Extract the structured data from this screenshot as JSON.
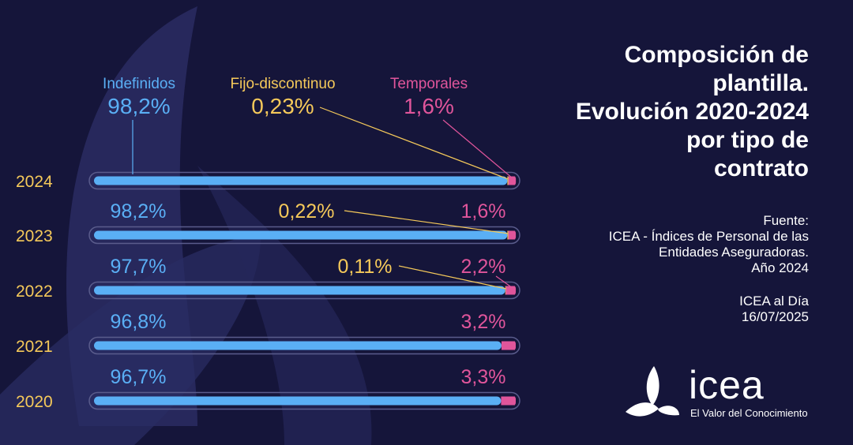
{
  "title_lines": [
    "Composición de",
    "plantilla.",
    "Evolución 2020-2024",
    "por tipo de",
    "contrato"
  ],
  "source": {
    "lines": [
      "Fuente:",
      "ICEA - Índices de Personal de las",
      "Entidades Aseguradoras.",
      "Año 2024"
    ],
    "edition_lines": [
      "ICEA al Día",
      "16/07/2025"
    ]
  },
  "logo": {
    "name": "icea",
    "tagline": "El Valor del Conocimiento"
  },
  "colors": {
    "background": "#15153a",
    "indefinidos": "#5aaff5",
    "fijo_discontinuo": "#f5c95a",
    "temporales": "#e0559b",
    "year_label": "#f5c95a"
  },
  "chart_data": {
    "type": "bar",
    "orientation": "horizontal",
    "stacked": true,
    "percent_stacked": true,
    "categories": [
      "2024",
      "2023",
      "2022",
      "2021",
      "2020"
    ],
    "series": [
      {
        "name": "Indefinidos",
        "values": [
          98.2,
          98.2,
          97.7,
          96.8,
          96.7
        ],
        "labels": [
          "98,2%",
          "98,2%",
          "97,7%",
          "96,8%",
          "96,7%"
        ]
      },
      {
        "name": "Fijo-discontinuo",
        "values": [
          0.23,
          0.22,
          0.11,
          null,
          null
        ],
        "labels": [
          "0,23%",
          "0,22%",
          "0,11%",
          "",
          ""
        ]
      },
      {
        "name": "Temporales",
        "values": [
          1.6,
          1.6,
          2.2,
          3.2,
          3.3
        ],
        "labels": [
          "1,6%",
          "1,6%",
          "2,2%",
          "3,2%",
          "3,3%"
        ]
      }
    ],
    "xlim": [
      0,
      100
    ],
    "legend": "top"
  }
}
